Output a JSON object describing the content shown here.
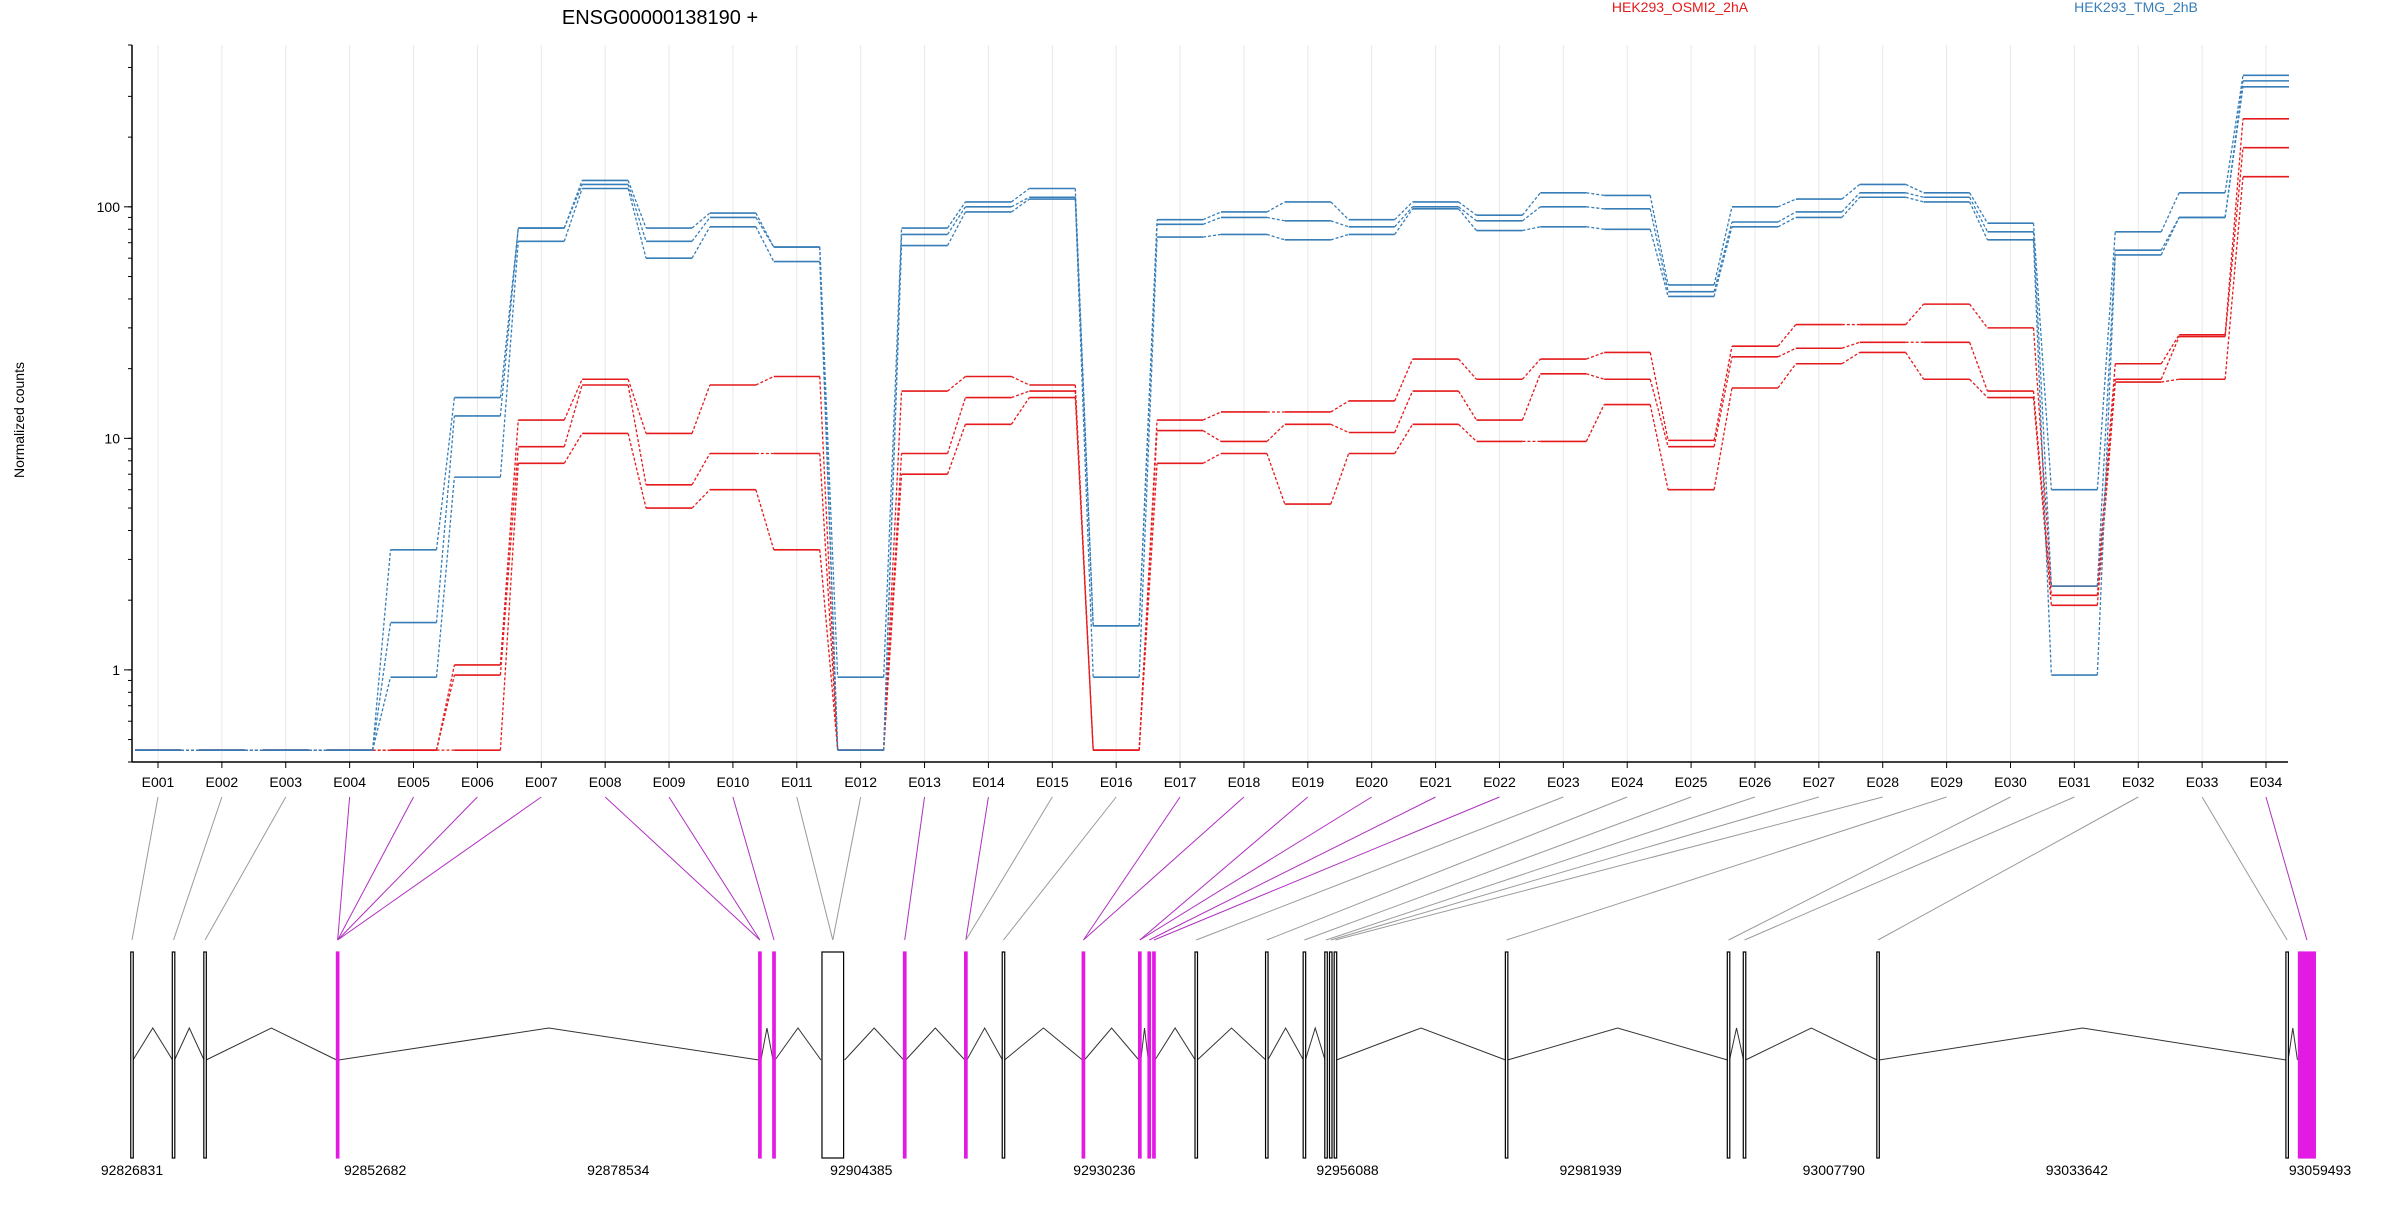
{
  "chart_data": {
    "type": "line",
    "title": "ENSG00000138190 +",
    "ylabel": "Normalized counts",
    "xlabel": "",
    "y_scale": "log",
    "ylim": [
      0.4,
      500
    ],
    "y_ticks": [
      1,
      10,
      100
    ],
    "y_tick_labels": [
      "1",
      "10",
      "100"
    ],
    "grid": "vertical-light",
    "legend_placement": "top",
    "categories": [
      "E001",
      "E002",
      "E003",
      "E004",
      "E005",
      "E006",
      "E007",
      "E008",
      "E009",
      "E010",
      "E011",
      "E012",
      "E013",
      "E014",
      "E015",
      "E016",
      "E017",
      "E018",
      "E019",
      "E020",
      "E021",
      "E022",
      "E023",
      "E024",
      "E025",
      "E026",
      "E027",
      "E028",
      "E029",
      "E030",
      "E031",
      "E032",
      "E033",
      "E034"
    ],
    "series": [
      {
        "name": "HEK293_OSMI2_2hA",
        "color": "#e41a1c",
        "values": [
          0.45,
          0.45,
          0.45,
          0.45,
          0.45,
          1.05,
          12,
          18,
          10.5,
          17,
          18.5,
          0.45,
          16,
          18.5,
          17,
          0.45,
          12,
          13,
          13,
          14.5,
          22,
          18,
          22,
          23.5,
          9.8,
          25,
          31,
          31,
          38,
          30,
          2.3,
          21,
          28,
          240
        ]
      },
      {
        "name": "HEK293_OSMI2_2hA",
        "color": "#e41a1c",
        "values": [
          0.45,
          0.45,
          0.45,
          0.45,
          0.45,
          0.95,
          9.2,
          17,
          6.3,
          8.6,
          8.6,
          0.45,
          8.6,
          15,
          16,
          0.45,
          10.8,
          9.7,
          11.5,
          10.6,
          16,
          12,
          19,
          18,
          9.2,
          22.5,
          24.5,
          26,
          26,
          16,
          2.1,
          18,
          27.5,
          180
        ]
      },
      {
        "name": "HEK293_OSMI2_2hA",
        "color": "#e41a1c",
        "values": [
          0.45,
          0.45,
          0.45,
          0.45,
          0.45,
          0.45,
          7.8,
          10.5,
          5,
          6,
          3.3,
          0.45,
          7,
          11.5,
          15,
          0.45,
          7.8,
          8.6,
          5.2,
          8.6,
          11.5,
          9.7,
          9.7,
          14,
          6,
          16.5,
          21,
          23.5,
          18,
          15,
          1.9,
          17.5,
          18,
          135
        ]
      },
      {
        "name": "HEK293_TMG_2hB",
        "color": "#377eb8",
        "values": [
          0.45,
          0.45,
          0.45,
          0.45,
          3.3,
          15,
          81,
          130,
          81,
          94,
          67,
          0.93,
          81,
          105,
          120,
          1.55,
          88,
          95,
          105,
          88,
          105,
          92,
          115,
          112,
          46,
          100,
          108,
          125,
          115,
          85,
          6,
          78,
          115,
          370
        ]
      },
      {
        "name": "HEK293_TMG_2hB",
        "color": "#377eb8",
        "values": [
          0.45,
          0.45,
          0.45,
          0.45,
          1.6,
          12.5,
          81,
          125,
          71,
          90,
          67,
          0.45,
          76,
          100,
          110,
          1.55,
          84,
          90,
          87,
          82,
          100,
          87,
          100,
          98,
          43,
          86,
          95,
          115,
          110,
          78,
          2.3,
          65,
          90,
          350
        ]
      },
      {
        "name": "HEK293_TMG_2hB",
        "color": "#377eb8",
        "values": [
          0.45,
          0.45,
          0.45,
          0.45,
          0.93,
          6.8,
          71,
          120,
          60,
          82,
          58,
          0.45,
          68,
          95,
          108,
          0.93,
          74,
          76,
          72,
          76,
          98,
          79,
          82,
          80,
          41,
          82,
          90,
          110,
          105,
          72,
          0.95,
          62,
          90,
          330
        ]
      }
    ],
    "genome_axis": {
      "range": [
        92826831,
        93059493
      ],
      "tick_labels": [
        "92826831",
        "92852682",
        "92878534",
        "92904385",
        "92930236",
        "92956088",
        "92981939",
        "93007790",
        "93033642",
        "93059493"
      ],
      "tick_values": [
        92826831,
        92852682,
        92878534,
        92904385,
        92930236,
        92956088,
        92981939,
        93007790,
        93033642,
        93059493
      ]
    },
    "exons": [
      {
        "id": "E001",
        "start": 92826831,
        "end": 92826831,
        "highlight": false
      },
      {
        "id": "E002",
        "start": 92831250,
        "end": 92831250,
        "highlight": false
      },
      {
        "id": "E003",
        "start": 92834600,
        "end": 92834600,
        "highlight": false
      },
      {
        "id": "E004",
        "start": 92848700,
        "end": 92848700,
        "highlight": true
      },
      {
        "id": "E005",
        "start": 92848700,
        "end": 92848700,
        "highlight": true
      },
      {
        "id": "E006",
        "start": 92848700,
        "end": 92848700,
        "highlight": true
      },
      {
        "id": "E007",
        "start": 92848700,
        "end": 92848700,
        "highlight": true
      },
      {
        "id": "E008",
        "start": 92893600,
        "end": 92893600,
        "highlight": true
      },
      {
        "id": "E009",
        "start": 92893600,
        "end": 92893600,
        "highlight": true
      },
      {
        "id": "E010",
        "start": 92895100,
        "end": 92895100,
        "highlight": true
      },
      {
        "id": "E011",
        "start": 92900200,
        "end": 92902500,
        "highlight": false
      },
      {
        "id": "E012",
        "start": 92900200,
        "end": 92902500,
        "highlight": false
      },
      {
        "id": "E013",
        "start": 92909000,
        "end": 92909000,
        "highlight": true
      },
      {
        "id": "E014",
        "start": 92915500,
        "end": 92915500,
        "highlight": true
      },
      {
        "id": "E015",
        "start": 92915500,
        "end": 92915500,
        "highlight": false
      },
      {
        "id": "E016",
        "start": 92919500,
        "end": 92919500,
        "highlight": false
      },
      {
        "id": "E017",
        "start": 92928000,
        "end": 92928000,
        "highlight": true
      },
      {
        "id": "E018",
        "start": 92928000,
        "end": 92928000,
        "highlight": true
      },
      {
        "id": "E019",
        "start": 92934000,
        "end": 92934000,
        "highlight": true
      },
      {
        "id": "E020",
        "start": 92934000,
        "end": 92934000,
        "highlight": true
      },
      {
        "id": "E021",
        "start": 92935000,
        "end": 92935000,
        "highlight": true
      },
      {
        "id": "E022",
        "start": 92935500,
        "end": 92935500,
        "highlight": true
      },
      {
        "id": "E023",
        "start": 92940000,
        "end": 92940000,
        "highlight": false
      },
      {
        "id": "E024",
        "start": 92947500,
        "end": 92947500,
        "highlight": false
      },
      {
        "id": "E025",
        "start": 92951500,
        "end": 92951500,
        "highlight": false
      },
      {
        "id": "E026",
        "start": 92953800,
        "end": 92953800,
        "highlight": false
      },
      {
        "id": "E027",
        "start": 92954300,
        "end": 92954300,
        "highlight": false
      },
      {
        "id": "E028",
        "start": 92954800,
        "end": 92954800,
        "highlight": false
      },
      {
        "id": "E029",
        "start": 92973000,
        "end": 92973000,
        "highlight": false
      },
      {
        "id": "E030",
        "start": 92996600,
        "end": 92996600,
        "highlight": false
      },
      {
        "id": "E031",
        "start": 92998300,
        "end": 92998300,
        "highlight": false
      },
      {
        "id": "E032",
        "start": 93012500,
        "end": 93012500,
        "highlight": false
      },
      {
        "id": "E033",
        "start": 93056000,
        "end": 93056000,
        "highlight": false
      },
      {
        "id": "E034",
        "start": 93057200,
        "end": 93059000,
        "highlight": true
      }
    ]
  },
  "legend": [
    {
      "label": "HEK293_OSMI2_2hA",
      "color": "#e41a1c"
    },
    {
      "label": "HEK293_TMG_2hB",
      "color": "#377eb8"
    }
  ],
  "colors": {
    "highlight_exon": "#e31ae3",
    "axis": "#000000",
    "intron": "#333333",
    "grid": "#e8e8e8"
  }
}
